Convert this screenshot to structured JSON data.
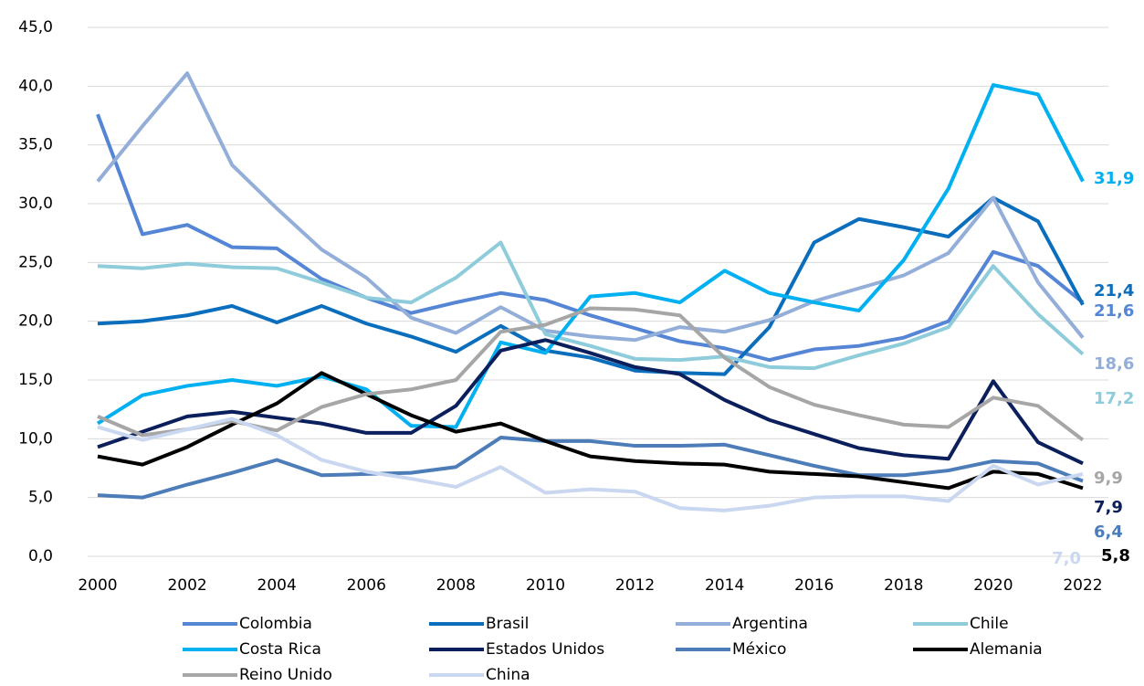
{
  "chart_data": {
    "type": "line",
    "x": [
      2000,
      2001,
      2002,
      2003,
      2004,
      2005,
      2006,
      2007,
      2008,
      2009,
      2010,
      2011,
      2012,
      2013,
      2014,
      2015,
      2016,
      2017,
      2018,
      2019,
      2020,
      2021,
      2022
    ],
    "xlim": [
      2000,
      2022
    ],
    "xticks": [
      2000,
      2002,
      2004,
      2006,
      2008,
      2010,
      2012,
      2014,
      2016,
      2018,
      2020,
      2022
    ],
    "ylim": [
      0,
      45
    ],
    "yticks": [
      {
        "value": 0,
        "label": "0,0"
      },
      {
        "value": 5,
        "label": "5,0"
      },
      {
        "value": 10,
        "label": "10,0"
      },
      {
        "value": 15,
        "label": "15,0"
      },
      {
        "value": 20,
        "label": "20,0"
      },
      {
        "value": 25,
        "label": "25,0"
      },
      {
        "value": 30,
        "label": "30,0"
      },
      {
        "value": 35,
        "label": "35,0"
      },
      {
        "value": 40,
        "label": "40,0"
      },
      {
        "value": 45,
        "label": "45,0"
      }
    ],
    "grid": true,
    "legend": "bottom",
    "series": [
      {
        "name": "Colombia",
        "color": "#5585D5",
        "values": [
          37.6,
          27.4,
          28.2,
          26.3,
          26.2,
          23.6,
          22.0,
          20.7,
          21.6,
          22.4,
          21.8,
          20.5,
          19.4,
          18.3,
          17.7,
          16.7,
          17.6,
          17.9,
          18.6,
          20.0,
          25.9,
          24.7,
          21.6
        ],
        "value_labels": [
          null,
          null,
          null,
          null,
          null,
          null,
          null,
          null,
          null,
          null,
          null,
          null,
          null,
          null,
          null,
          null,
          null,
          null,
          null,
          null,
          null,
          null,
          "21,6"
        ]
      },
      {
        "name": "Brasil",
        "color": "#0A6EBD",
        "values": [
          19.8,
          20.0,
          20.5,
          21.3,
          19.9,
          21.3,
          19.8,
          18.7,
          17.4,
          19.6,
          17.5,
          16.9,
          15.8,
          15.6,
          15.5,
          19.5,
          26.7,
          28.7,
          28.0,
          27.2,
          30.5,
          28.5,
          21.4
        ],
        "value_labels": [
          null,
          null,
          null,
          null,
          null,
          null,
          null,
          null,
          null,
          null,
          null,
          null,
          null,
          null,
          null,
          null,
          null,
          null,
          null,
          null,
          null,
          null,
          "21,4"
        ]
      },
      {
        "name": "Argentina",
        "color": "#93AED8",
        "values": [
          31.9,
          36.6,
          41.1,
          33.3,
          29.6,
          26.1,
          23.7,
          20.3,
          19.0,
          21.2,
          19.2,
          18.7,
          18.4,
          19.5,
          19.1,
          20.1,
          21.7,
          22.8,
          23.9,
          25.8,
          30.5,
          23.3,
          18.6
        ],
        "value_labels": [
          null,
          null,
          null,
          null,
          null,
          null,
          null,
          null,
          null,
          null,
          null,
          null,
          null,
          null,
          null,
          null,
          null,
          null,
          null,
          null,
          null,
          null,
          "18,6"
        ]
      },
      {
        "name": "Chile",
        "color": "#8FCCDB",
        "values": [
          24.7,
          24.5,
          24.9,
          24.6,
          24.5,
          23.3,
          22.0,
          21.6,
          23.7,
          26.7,
          18.9,
          17.9,
          16.8,
          16.7,
          17.0,
          16.1,
          16.0,
          17.1,
          18.1,
          19.5,
          24.7,
          20.6,
          17.2
        ],
        "value_labels": [
          null,
          null,
          null,
          null,
          null,
          null,
          null,
          null,
          null,
          null,
          null,
          null,
          null,
          null,
          null,
          null,
          null,
          null,
          null,
          null,
          null,
          null,
          "17,2"
        ]
      },
      {
        "name": "Costa Rica",
        "color": "#00B0F0",
        "values": [
          11.3,
          13.7,
          14.5,
          15.0,
          14.5,
          15.3,
          14.2,
          11.1,
          11.0,
          18.2,
          17.3,
          22.1,
          22.4,
          21.6,
          24.3,
          22.4,
          21.6,
          20.9,
          25.2,
          31.3,
          40.1,
          39.3,
          31.9
        ],
        "value_labels": [
          null,
          null,
          null,
          null,
          null,
          null,
          null,
          null,
          null,
          null,
          null,
          null,
          null,
          null,
          null,
          null,
          null,
          null,
          null,
          null,
          null,
          null,
          "31,9"
        ]
      },
      {
        "name": "Estados Unidos",
        "color": "#0B1F5C",
        "values": [
          9.3,
          10.6,
          11.9,
          12.3,
          11.8,
          11.3,
          10.5,
          10.5,
          12.8,
          17.5,
          18.4,
          17.3,
          16.1,
          15.5,
          13.3,
          11.6,
          10.4,
          9.2,
          8.6,
          8.3,
          14.9,
          9.7,
          7.9
        ],
        "value_labels": [
          null,
          null,
          null,
          null,
          null,
          null,
          null,
          null,
          null,
          null,
          null,
          null,
          null,
          null,
          null,
          null,
          null,
          null,
          null,
          null,
          null,
          null,
          "7,9"
        ]
      },
      {
        "name": "México",
        "color": "#4D7DB8",
        "values": [
          5.2,
          5.0,
          6.1,
          7.1,
          8.2,
          6.9,
          7.0,
          7.1,
          7.6,
          10.1,
          9.8,
          9.8,
          9.4,
          9.4,
          9.5,
          8.6,
          7.7,
          6.9,
          6.9,
          7.3,
          8.1,
          7.9,
          6.4
        ],
        "value_labels": [
          null,
          null,
          null,
          null,
          null,
          null,
          null,
          null,
          null,
          null,
          null,
          null,
          null,
          null,
          null,
          null,
          null,
          null,
          null,
          null,
          null,
          null,
          "6,4"
        ]
      },
      {
        "name": "Alemania",
        "color": "#000000",
        "values": [
          8.5,
          7.8,
          9.3,
          11.2,
          13.0,
          15.6,
          13.8,
          12.0,
          10.6,
          11.3,
          9.8,
          8.5,
          8.1,
          7.9,
          7.8,
          7.2,
          7.0,
          6.8,
          6.3,
          5.8,
          7.2,
          7.0,
          5.8
        ],
        "value_labels": [
          null,
          null,
          null,
          null,
          null,
          null,
          null,
          null,
          null,
          null,
          null,
          null,
          null,
          null,
          null,
          null,
          null,
          null,
          null,
          null,
          null,
          null,
          "5,8"
        ]
      },
      {
        "name": "Reino Unido",
        "color": "#A6A6A6",
        "values": [
          11.9,
          10.3,
          10.8,
          11.5,
          10.7,
          12.7,
          13.8,
          14.2,
          15.0,
          19.1,
          19.7,
          21.1,
          21.0,
          20.5,
          16.9,
          14.4,
          12.9,
          12.0,
          11.2,
          11.0,
          13.5,
          12.8,
          9.9
        ],
        "value_labels": [
          null,
          null,
          null,
          null,
          null,
          null,
          null,
          null,
          null,
          null,
          null,
          null,
          null,
          null,
          null,
          null,
          null,
          null,
          null,
          null,
          null,
          null,
          "9,9"
        ]
      },
      {
        "name": "China",
        "color": "#C9D7F0",
        "values": [
          11.0,
          9.9,
          10.8,
          11.7,
          10.3,
          8.2,
          7.2,
          6.6,
          5.9,
          7.6,
          5.4,
          5.7,
          5.5,
          4.1,
          3.9,
          4.3,
          5.0,
          5.1,
          5.1,
          4.7,
          7.7,
          6.1,
          7.0
        ],
        "value_labels": [
          null,
          null,
          null,
          null,
          null,
          null,
          null,
          null,
          null,
          null,
          null,
          null,
          null,
          null,
          null,
          null,
          null,
          null,
          null,
          null,
          null,
          null,
          "7,0"
        ]
      }
    ]
  }
}
